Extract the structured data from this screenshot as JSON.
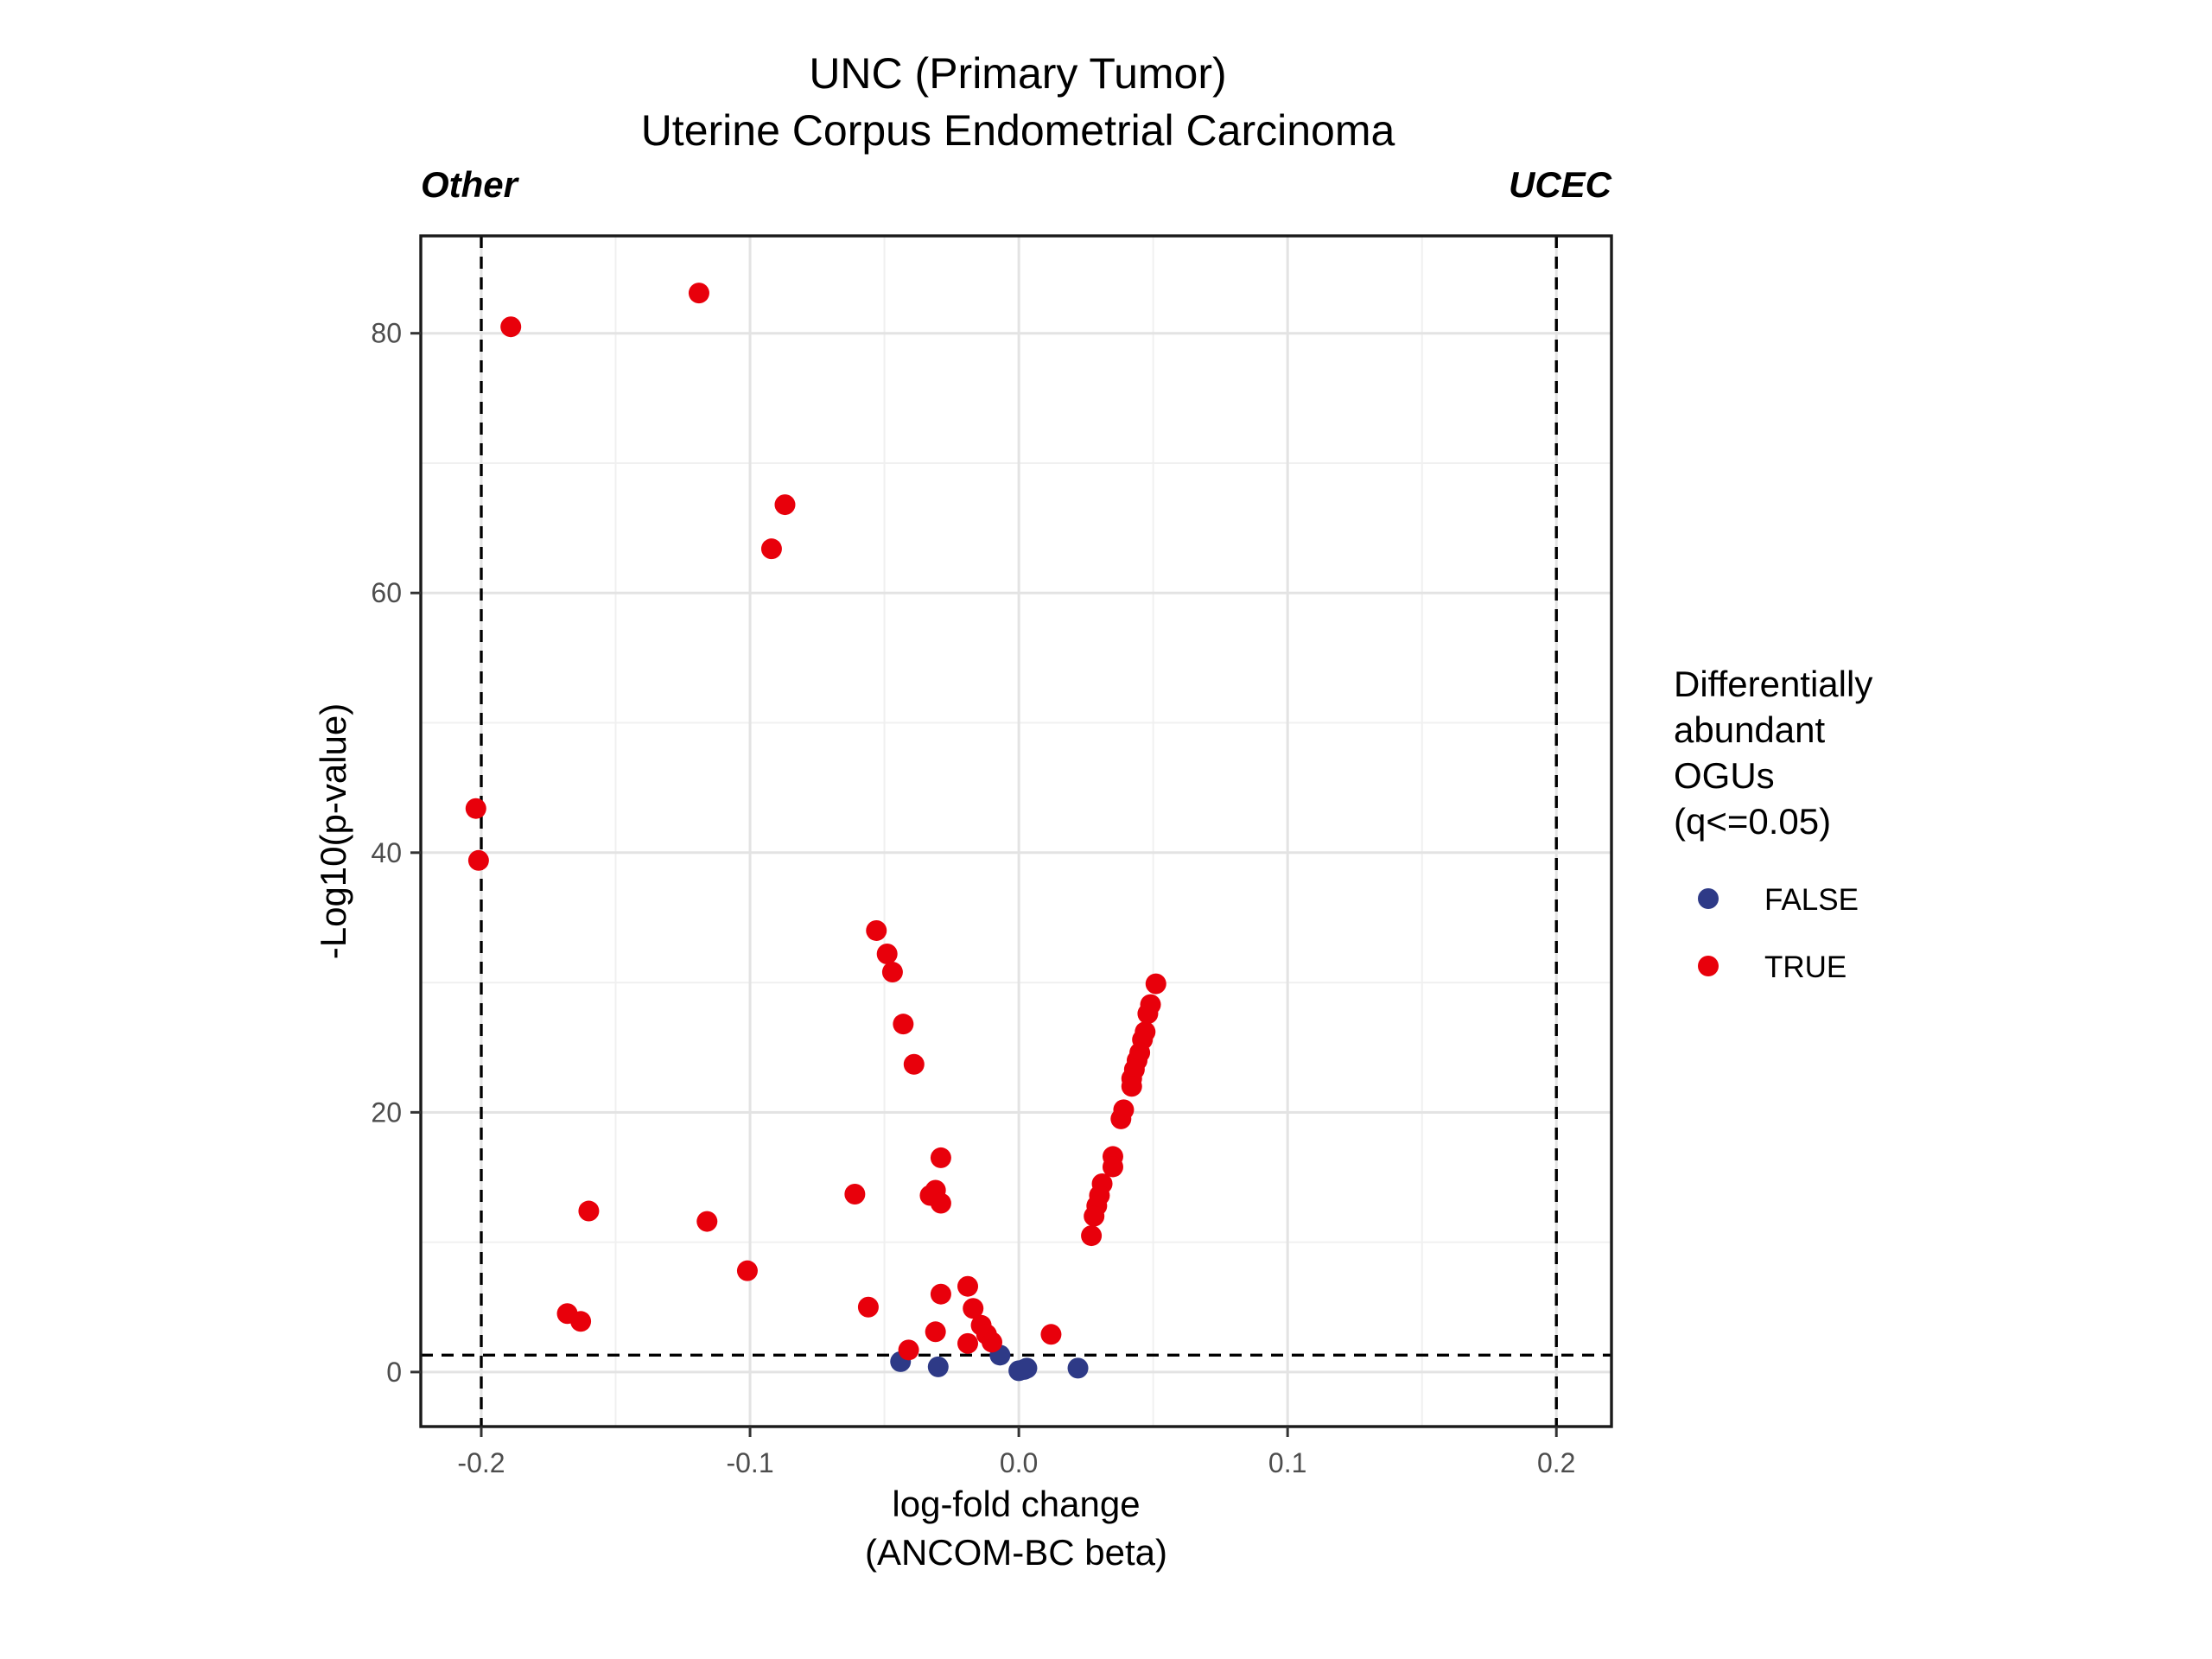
{
  "chart_data": {
    "type": "scatter",
    "title": "UNC (Primary Tumor)",
    "subtitle": "Uterine Corpus Endometrial Carcinoma",
    "left_label": "Other",
    "right_label": "UCEC",
    "xlabel": "log-fold change",
    "xlabel_sub": "(ANCOM-BC beta)",
    "ylabel": "-Log10(p-value)",
    "xlim": [
      -0.2225,
      0.2205
    ],
    "ylim": [
      -4.2,
      87.5
    ],
    "x_ticks": [
      -0.2,
      -0.1,
      0.0,
      0.1,
      0.2
    ],
    "x_tick_labels": [
      "-0.2",
      "-0.1",
      "0.0",
      "0.1",
      "0.2"
    ],
    "y_ticks": [
      0,
      20,
      40,
      60,
      80
    ],
    "y_tick_labels": [
      "0",
      "20",
      "40",
      "60",
      "80"
    ],
    "grid": true,
    "reference_lines": {
      "x": [
        -0.2,
        0.2
      ],
      "y": [
        1.3
      ]
    },
    "legend": {
      "title": [
        "Differentially",
        "abundant",
        "OGUs",
        "(q<=0.05)"
      ],
      "placement": "right"
    },
    "series": [
      {
        "name": "FALSE",
        "color": "#2e3a87",
        "points": [
          [
            -0.044,
            0.8
          ],
          [
            -0.03,
            0.4
          ],
          [
            -0.007,
            1.3
          ],
          [
            0.0,
            0.1
          ],
          [
            0.002,
            0.2
          ],
          [
            0.003,
            0.3
          ],
          [
            0.022,
            0.3
          ]
        ]
      },
      {
        "name": "TRUE",
        "color": "#e8000b",
        "points": [
          [
            -0.119,
            83.1
          ],
          [
            -0.189,
            80.5
          ],
          [
            -0.087,
            66.8
          ],
          [
            -0.092,
            63.4
          ],
          [
            -0.202,
            43.4
          ],
          [
            -0.201,
            39.4
          ],
          [
            -0.053,
            34.0
          ],
          [
            -0.049,
            32.2
          ],
          [
            -0.047,
            30.8
          ],
          [
            -0.043,
            26.8
          ],
          [
            -0.039,
            23.7
          ],
          [
            -0.029,
            16.5
          ],
          [
            -0.061,
            13.7
          ],
          [
            -0.033,
            13.6
          ],
          [
            -0.031,
            14.0
          ],
          [
            -0.029,
            13.0
          ],
          [
            -0.16,
            12.4
          ],
          [
            -0.116,
            11.6
          ],
          [
            -0.101,
            7.8
          ],
          [
            -0.168,
            4.5
          ],
          [
            -0.163,
            3.9
          ],
          [
            -0.056,
            5.0
          ],
          [
            -0.029,
            6.0
          ],
          [
            -0.019,
            6.6
          ],
          [
            -0.017,
            4.9
          ],
          [
            -0.014,
            3.6
          ],
          [
            -0.012,
            2.9
          ],
          [
            -0.031,
            3.1
          ],
          [
            -0.019,
            2.2
          ],
          [
            -0.041,
            1.7
          ],
          [
            -0.01,
            2.3
          ],
          [
            0.012,
            2.9
          ],
          [
            0.051,
            29.9
          ],
          [
            0.049,
            28.3
          ],
          [
            0.048,
            27.6
          ],
          [
            0.047,
            26.2
          ],
          [
            0.046,
            25.6
          ],
          [
            0.045,
            24.6
          ],
          [
            0.044,
            24.0
          ],
          [
            0.043,
            23.3
          ],
          [
            0.042,
            22.6
          ],
          [
            0.042,
            22.0
          ],
          [
            0.039,
            20.2
          ],
          [
            0.038,
            19.5
          ],
          [
            0.035,
            16.6
          ],
          [
            0.035,
            15.8
          ],
          [
            0.031,
            14.5
          ],
          [
            0.03,
            13.6
          ],
          [
            0.029,
            12.8
          ],
          [
            0.028,
            12.0
          ],
          [
            0.027,
            10.5
          ]
        ]
      }
    ]
  }
}
